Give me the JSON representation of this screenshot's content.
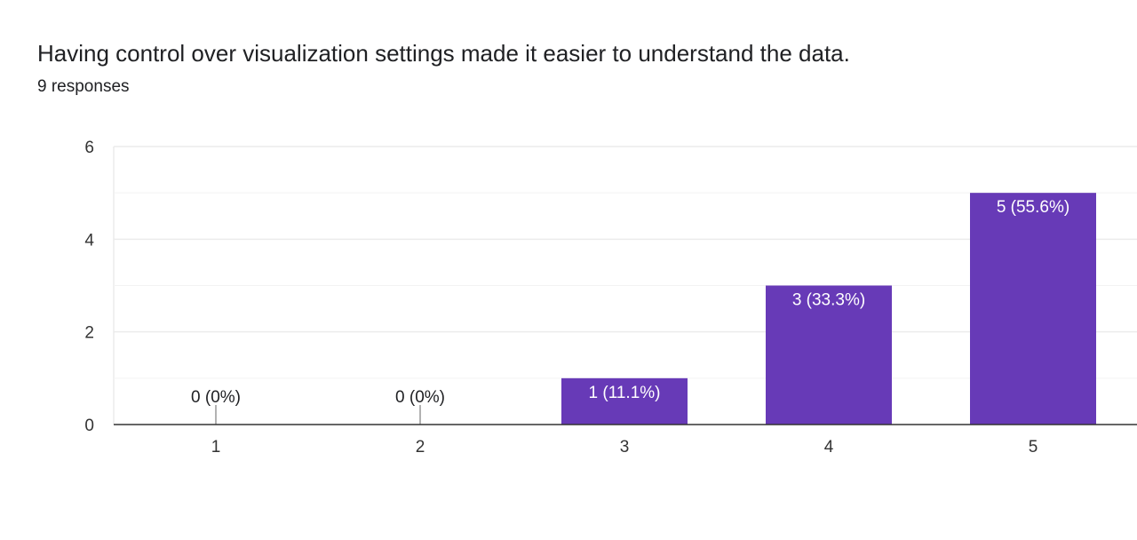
{
  "question": {
    "title": "Having control over visualization settings made it easier to understand the data.",
    "responses": "9 responses"
  },
  "colors": {
    "bar": "#673ab7",
    "grid": "#ebebeb",
    "axis": "#333333",
    "label_inside": "#ffffff",
    "label_outside": "#202124"
  },
  "chart_data": {
    "type": "bar",
    "categories": [
      "1",
      "2",
      "3",
      "4",
      "5"
    ],
    "values": [
      0,
      0,
      1,
      3,
      5
    ],
    "data_labels": [
      "0 (0%)",
      "0 (0%)",
      "1 (11.1%)",
      "3 (33.3%)",
      "5 (55.6%)"
    ],
    "ylim": [
      0,
      6
    ],
    "y_ticks": [
      0,
      2,
      4,
      6
    ],
    "minor_gridlines": [
      1,
      3,
      5
    ],
    "grid": true,
    "title": "",
    "xlabel": "",
    "ylabel": ""
  }
}
